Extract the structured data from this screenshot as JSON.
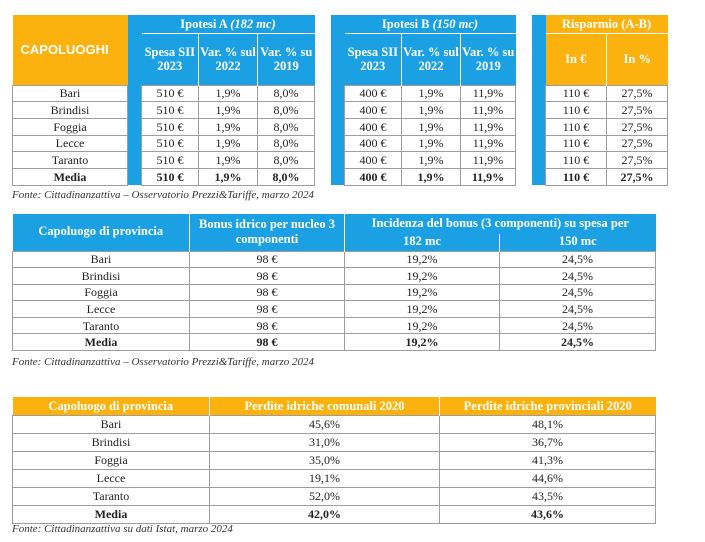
{
  "table1": {
    "corner": "CAPOLUOGHI",
    "group_a": {
      "label": "Ipotesi A",
      "detail": "(182 mc)"
    },
    "group_b": {
      "label": "Ipotesi B",
      "detail": "(150 mc)"
    },
    "group_c": {
      "label": "Risparmio (A-B)"
    },
    "sub_a": [
      "Spesa SII 2023",
      "Var. % sul 2022",
      "Var. % su 2019"
    ],
    "sub_b": [
      "Spesa SII 2023",
      "Var. % sul 2022",
      "Var. % su 2019"
    ],
    "sub_c": [
      "In €",
      "In %"
    ],
    "rows": [
      [
        "Bari",
        "510 €",
        "1,9%",
        "8,0%",
        "400 €",
        "1,9%",
        "11,9%",
        "110 €",
        "27,5%"
      ],
      [
        "Brindisi",
        "510 €",
        "1,9%",
        "8,0%",
        "400 €",
        "1,9%",
        "11,9%",
        "110 €",
        "27,5%"
      ],
      [
        "Foggia",
        "510 €",
        "1,9%",
        "8,0%",
        "400 €",
        "1,9%",
        "11,9%",
        "110 €",
        "27,5%"
      ],
      [
        "Lecce",
        "510 €",
        "1,9%",
        "8,0%",
        "400 €",
        "1,9%",
        "11,9%",
        "110 €",
        "27,5%"
      ],
      [
        "Taranto",
        "510 €",
        "1,9%",
        "8,0%",
        "400 €",
        "1,9%",
        "11,9%",
        "110 €",
        "27,5%"
      ],
      [
        "Media",
        "510 €",
        "1,9%",
        "8,0%",
        "400 €",
        "1,9%",
        "11,9%",
        "110 €",
        "27,5%"
      ]
    ],
    "source": "Fonte: Cittadinanzattiva – Osservatorio Prezzi&Tariffe, marzo 2024"
  },
  "table2": {
    "col1": "Capoluogo di provincia",
    "col2": "Bonus idrico per nucleo 3 componenti",
    "col3": "Incidenza del bonus (3 componenti) su spesa per",
    "sub": [
      "182 mc",
      "150 mc"
    ],
    "rows": [
      [
        "Bari",
        "98 €",
        "19,2%",
        "24,5%"
      ],
      [
        "Brindisi",
        "98 €",
        "19,2%",
        "24,5%"
      ],
      [
        "Foggia",
        "98 €",
        "19,2%",
        "24,5%"
      ],
      [
        "Lecce",
        "98 €",
        "19,2%",
        "24,5%"
      ],
      [
        "Taranto",
        "98 €",
        "19,2%",
        "24,5%"
      ],
      [
        "Media",
        "98 €",
        "19,2%",
        "24,5%"
      ]
    ],
    "source": "Fonte: Cittadinanzattiva – Osservatorio Prezzi&Tariffe, marzo 2024"
  },
  "table3": {
    "headers": [
      "Capoluogo di provincia",
      "Perdite idriche comunali 2020",
      "Perdite idriche provinciali 2020"
    ],
    "rows": [
      [
        "Bari",
        "45,6%",
        "48,1%"
      ],
      [
        "Brindisi",
        "31,0%",
        "36,7%"
      ],
      [
        "Foggia",
        "35,0%",
        "41,3%"
      ],
      [
        "Lecce",
        "19,1%",
        "44,6%"
      ],
      [
        "Taranto",
        "52,0%",
        "43,5%"
      ],
      [
        "Media",
        "42,0%",
        "43,6%"
      ]
    ],
    "source": "Fonte: Cittadinanzattiva su dati Istat, marzo 2024"
  },
  "colors": {
    "orange": "#fbb20f",
    "blue": "#1ca0e4"
  }
}
